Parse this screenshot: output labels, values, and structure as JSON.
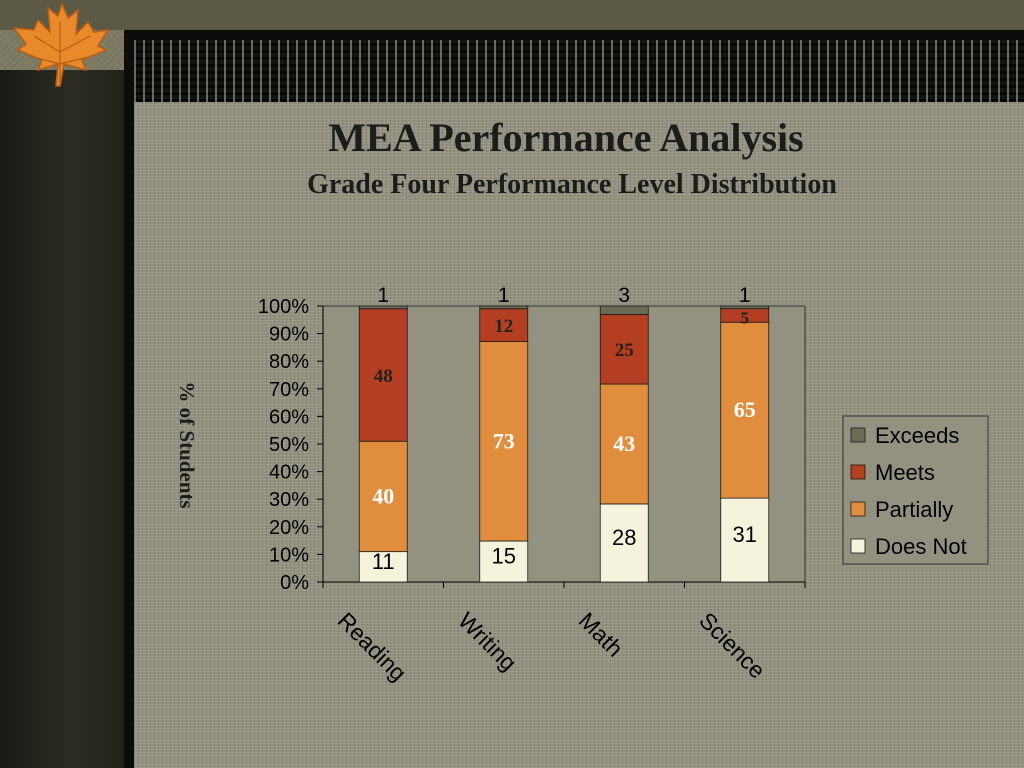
{
  "slide": {
    "title": "MEA Performance Analysis",
    "subtitle": "Grade Four Performance Level Distribution"
  },
  "chart_data": {
    "type": "bar",
    "stacked": "percent",
    "title": "MEA Performance Analysis",
    "subtitle": "Grade Four Performance Level Distribution",
    "xlabel": "",
    "ylabel": "% of Students",
    "ylim": [
      0,
      100
    ],
    "yticks": [
      "0%",
      "10%",
      "20%",
      "30%",
      "40%",
      "50%",
      "60%",
      "70%",
      "80%",
      "90%",
      "100%"
    ],
    "categories": [
      "Reading",
      "Writing",
      "Math",
      "Science"
    ],
    "series": [
      {
        "name": "Does Not",
        "color": "#f5f3dc",
        "values": [
          11,
          15,
          28,
          31
        ],
        "labels": [
          "11",
          "15",
          "28",
          "31"
        ]
      },
      {
        "name": "Partially",
        "color": "#e08e3e",
        "values": [
          40,
          73,
          43,
          65
        ],
        "labels": [
          "40",
          "73",
          "43",
          "65"
        ]
      },
      {
        "name": "Meets",
        "color": "#b33e21",
        "values": [
          48,
          12,
          25,
          5
        ],
        "labels": [
          "48",
          "12",
          "25",
          "5"
        ]
      },
      {
        "name": "Exceeds",
        "color": "#6b6b56",
        "values": [
          1,
          1,
          3,
          1
        ],
        "labels": [
          "1",
          "1",
          "3",
          "1"
        ]
      }
    ],
    "legend": {
      "position": "right",
      "order": [
        "Exceeds",
        "Meets",
        "Partially",
        "Does Not"
      ]
    },
    "grid": false
  }
}
